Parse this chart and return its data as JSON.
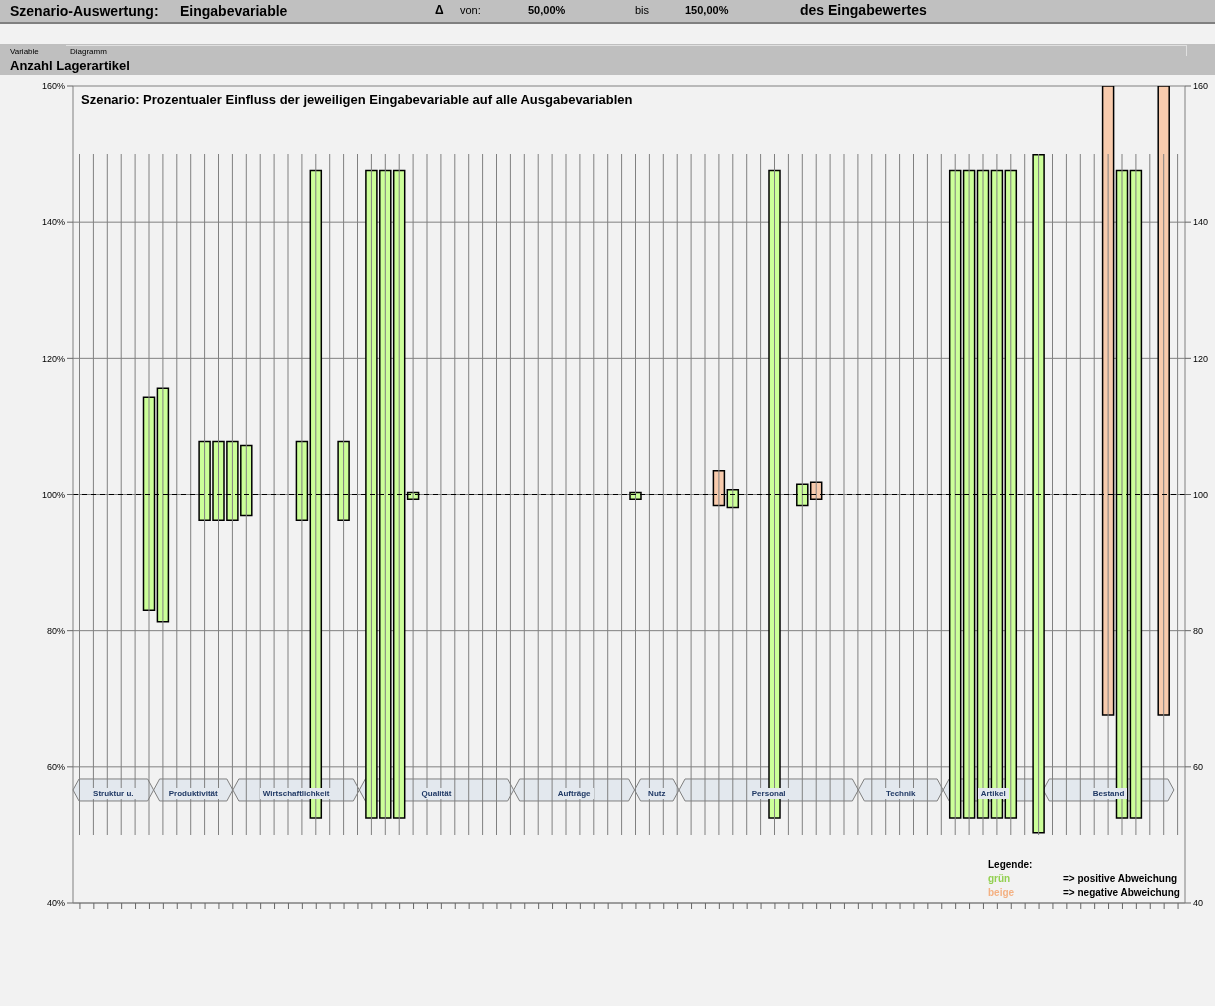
{
  "chart_data": {
    "type": "bar",
    "title": "Szenario: Prozentualer Einfluss der jeweiligen Eingabevariable auf alle Ausgabevariablen",
    "annotations": [
      "Szenario-Auswertung:",
      "Eingabevariable",
      "Δ",
      "von:",
      "50,00%",
      "bis",
      "150,00%",
      "des Eingabewertes",
      "Variable",
      "Diagramm",
      "Anzahl Lagerartikel",
      "Struktur u.",
      "Produktivität",
      "Wirtschaftlichkeit",
      "Qualität",
      "Aufträge",
      "Nutz",
      "Personal",
      "Technik",
      "Artikel",
      "Bestand",
      "Legende:",
      "grün",
      "=> positive Abweichung",
      "beige",
      "=> negative Abweichung"
    ],
    "categories": [
      null,
      null,
      null,
      null,
      null,
      null,
      null,
      null,
      null,
      null,
      null,
      null,
      null,
      null,
      null,
      null,
      null,
      null,
      null,
      null,
      null,
      null,
      null,
      null,
      null,
      null,
      null,
      null,
      null,
      null,
      null,
      null,
      null,
      null,
      null,
      null,
      null,
      null,
      null,
      null,
      null,
      null,
      null,
      null,
      null,
      null,
      null,
      null,
      null,
      null,
      null,
      null,
      null,
      null,
      null,
      null,
      null,
      null,
      null,
      null,
      null,
      null,
      null,
      null,
      null,
      null,
      null,
      null,
      null,
      null,
      null,
      null,
      null,
      null,
      null,
      null,
      null,
      null,
      null,
      null
    ],
    "series": [
      {
        "color": "#808080",
        "base": [
          50,
          50,
          50,
          50,
          50,
          50,
          50,
          50,
          50,
          50,
          50,
          50,
          50,
          50,
          50,
          50,
          50,
          50,
          50,
          50,
          50,
          50,
          50,
          50,
          50,
          50,
          50,
          50,
          50,
          50,
          50,
          50,
          50,
          50,
          50,
          50,
          50,
          50,
          50,
          50,
          50,
          50,
          50,
          50,
          50,
          50,
          50,
          50,
          50,
          50,
          50,
          50,
          50,
          50,
          50,
          50,
          50,
          50,
          50,
          50,
          50,
          50,
          50,
          50,
          50,
          50,
          50,
          50,
          50,
          50,
          50,
          50,
          50,
          50,
          50,
          50,
          50,
          50,
          50,
          50
        ],
        "values": [
          100,
          100,
          100,
          100,
          100,
          100,
          100,
          100,
          100,
          100,
          100,
          100,
          100,
          100,
          100,
          100,
          100,
          100,
          100,
          100,
          100,
          100,
          100,
          100,
          100,
          100,
          100,
          100,
          100,
          100,
          100,
          100,
          100,
          100,
          100,
          100,
          100,
          100,
          100,
          100,
          100,
          100,
          100,
          100,
          100,
          100,
          100,
          100,
          100,
          100,
          100,
          100,
          100,
          100,
          100,
          100,
          100,
          100,
          100,
          100,
          100,
          100,
          100,
          100,
          100,
          100,
          100,
          100,
          100,
          100,
          100,
          100,
          100,
          100,
          100,
          100,
          100,
          100,
          100,
          100
        ]
      },
      {
        "base": [
          null,
          null,
          null,
          null,
          null,
          83.0,
          81.3,
          null,
          null,
          96.2,
          96.2,
          96.2,
          96.9,
          null,
          null,
          null,
          96.2,
          52.5,
          null,
          96.2,
          null,
          52.5,
          52.5,
          52.5,
          99.3,
          null,
          null,
          null,
          null,
          null,
          null,
          null,
          null,
          null,
          null,
          null,
          null,
          null,
          null,
          null,
          99.3,
          null,
          null,
          null,
          null,
          null,
          98.4,
          98.1,
          null,
          null,
          52.5,
          null,
          98.4,
          99.3,
          null,
          null,
          null,
          null,
          null,
          null,
          null,
          null,
          null,
          52.5,
          52.5,
          52.5,
          52.5,
          52.5,
          null,
          50.3,
          null,
          null,
          null,
          null,
          67.6,
          52.5,
          52.5,
          null,
          67.6,
          null
        ],
        "values": [
          null,
          null,
          null,
          null,
          null,
          31.3,
          34.3,
          null,
          null,
          11.6,
          11.6,
          11.6,
          10.3,
          null,
          null,
          null,
          11.6,
          95.1,
          null,
          11.6,
          null,
          95.1,
          95.1,
          95.1,
          1.0,
          null,
          null,
          null,
          null,
          null,
          null,
          null,
          null,
          null,
          null,
          null,
          null,
          null,
          null,
          null,
          1.0,
          null,
          null,
          null,
          null,
          null,
          5.1,
          2.6,
          null,
          null,
          95.1,
          null,
          3.1,
          2.5,
          null,
          null,
          null,
          null,
          null,
          null,
          null,
          null,
          null,
          95.1,
          95.1,
          95.1,
          95.1,
          95.1,
          null,
          99.6,
          null,
          null,
          null,
          null,
          92.4,
          95.1,
          95.1,
          null,
          92.4,
          null
        ],
        "colors": [
          null,
          null,
          null,
          null,
          null,
          "#ccff99",
          "#ccff99",
          null,
          null,
          "#ccff99",
          "#ccff99",
          "#ccff99",
          "#ccff99",
          null,
          null,
          null,
          "#ccff99",
          "#ccff99",
          null,
          "#ccff99",
          null,
          "#ccff99",
          "#ccff99",
          "#ccff99",
          "#ccff99",
          null,
          null,
          null,
          null,
          null,
          null,
          null,
          null,
          null,
          null,
          null,
          null,
          null,
          null,
          null,
          "#ccff99",
          null,
          null,
          null,
          null,
          null,
          "#f8cbad",
          "#ccff99",
          null,
          null,
          "#ccff99",
          null,
          "#ccff99",
          "#f8cbad",
          null,
          null,
          null,
          null,
          null,
          null,
          null,
          null,
          null,
          "#ccff99",
          "#ccff99",
          "#ccff99",
          "#ccff99",
          "#ccff99",
          null,
          "#ccff99",
          null,
          null,
          null,
          null,
          "#f8cbad",
          "#ccff99",
          "#ccff99",
          null,
          "#f8cbad",
          null
        ]
      }
    ],
    "ylim": [
      40,
      160
    ],
    "yticks": [
      {
        "value": 40,
        "label": "40%"
      },
      {
        "value": 60,
        "label": "60%"
      },
      {
        "value": 80,
        "label": "80%"
      },
      {
        "value": 100,
        "label": "100%"
      },
      {
        "value": 120,
        "label": "120%"
      },
      {
        "value": 140,
        "label": "140%"
      },
      {
        "value": 160,
        "label": "160%"
      }
    ],
    "y2lim": [
      40,
      160
    ],
    "y2ticks": [
      40,
      60,
      80,
      100,
      120,
      140,
      160
    ],
    "ref_lines": [
      {
        "axis": "y",
        "value": 100,
        "color": "#000000",
        "line_style": "dashed"
      }
    ],
    "grid": "y",
    "tick_labels": "y"
  }
}
